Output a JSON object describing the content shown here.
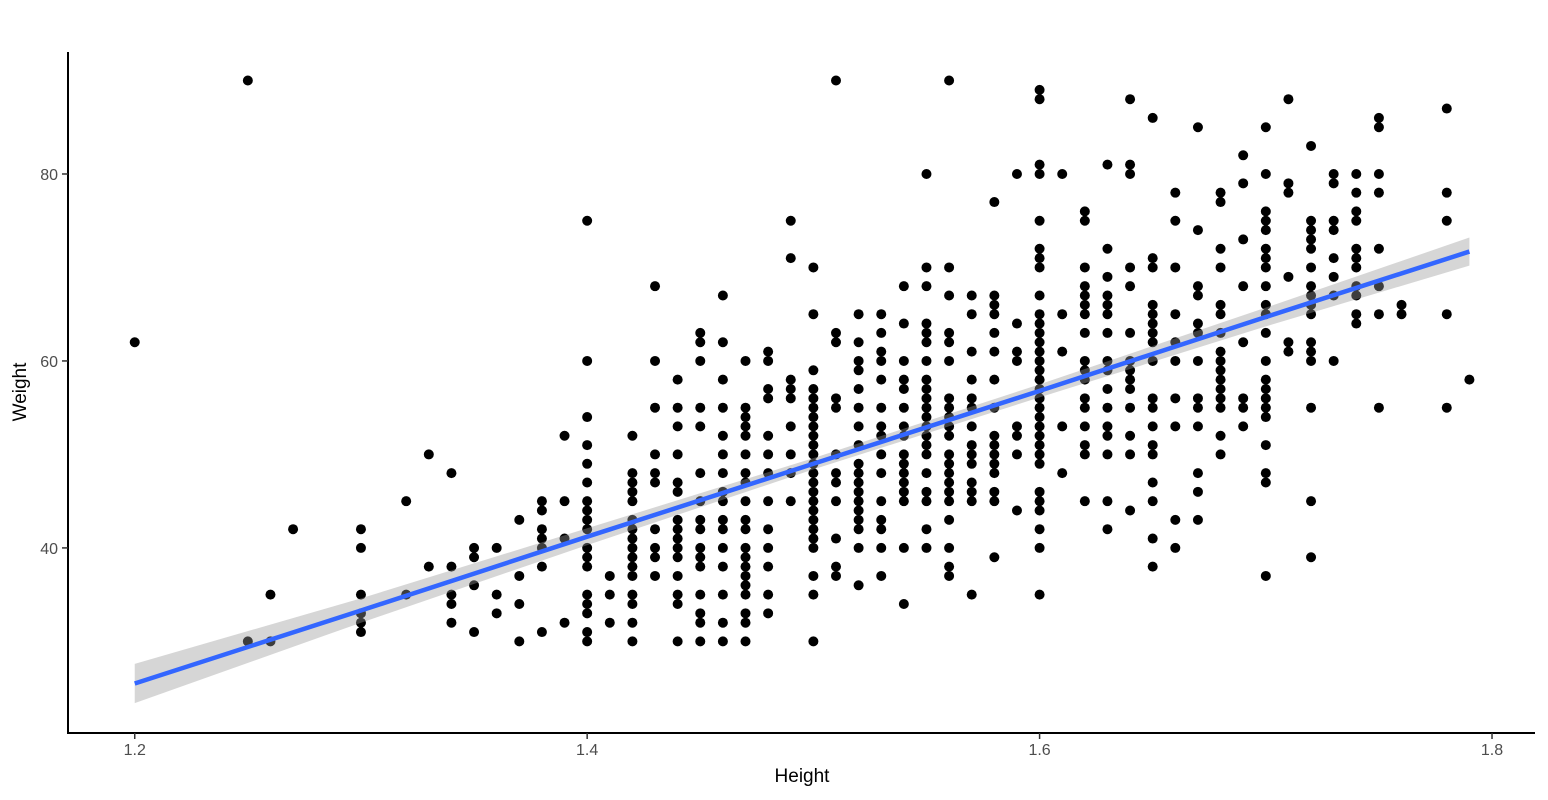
{
  "chart_data": {
    "type": "scatter",
    "x_label": "Height",
    "y_label": "Weight",
    "xlim": [
      1.1705,
      1.819
    ],
    "ylim": [
      20.2,
      93.05
    ],
    "xticks": [
      1.2,
      1.4,
      1.6,
      1.8
    ],
    "yticks": [
      40,
      60,
      80
    ],
    "color": "#000000",
    "points": [
      {
        "x": 1.2,
        "values": [
          62
        ]
      },
      {
        "x": 1.25,
        "values": [
          90,
          30
        ]
      },
      {
        "x": 1.26,
        "values": [
          35,
          30
        ]
      },
      {
        "x": 1.27,
        "values": [
          42
        ]
      },
      {
        "x": 1.3,
        "values": [
          42,
          40,
          35,
          33,
          32,
          31
        ]
      },
      {
        "x": 1.32,
        "values": [
          45,
          35
        ]
      },
      {
        "x": 1.33,
        "values": [
          50,
          38
        ]
      },
      {
        "x": 1.34,
        "values": [
          48,
          38,
          35,
          34,
          32
        ]
      },
      {
        "x": 1.35,
        "values": [
          40,
          39,
          36,
          31
        ]
      },
      {
        "x": 1.36,
        "values": [
          40,
          35,
          33
        ]
      },
      {
        "x": 1.37,
        "values": [
          43,
          37,
          34,
          30
        ]
      },
      {
        "x": 1.38,
        "values": [
          45,
          44,
          42,
          41,
          40,
          38,
          31
        ]
      },
      {
        "x": 1.39,
        "values": [
          52,
          45,
          41,
          32
        ]
      },
      {
        "x": 1.4,
        "values": [
          75,
          60,
          54,
          51,
          49,
          47,
          45,
          44,
          43,
          42,
          40,
          39,
          38,
          35,
          34,
          33,
          31,
          30
        ]
      },
      {
        "x": 1.41,
        "values": [
          37,
          35,
          32
        ]
      },
      {
        "x": 1.42,
        "values": [
          52,
          48,
          47,
          46,
          45,
          43,
          42,
          41,
          40,
          39,
          38,
          37,
          35,
          34,
          32,
          30
        ]
      },
      {
        "x": 1.43,
        "values": [
          68,
          60,
          55,
          50,
          48,
          47,
          42,
          40,
          39,
          37
        ]
      },
      {
        "x": 1.44,
        "values": [
          58,
          55,
          53,
          50,
          47,
          46,
          43,
          42,
          41,
          40,
          39,
          37,
          35,
          34,
          30
        ]
      },
      {
        "x": 1.45,
        "values": [
          63,
          62,
          60,
          55,
          53,
          48,
          45,
          43,
          42,
          40,
          39,
          38,
          35,
          33,
          32,
          30
        ]
      },
      {
        "x": 1.46,
        "values": [
          67,
          62,
          58,
          55,
          52,
          50,
          48,
          46,
          45,
          43,
          42,
          40,
          38,
          35,
          32,
          30
        ]
      },
      {
        "x": 1.47,
        "values": [
          60,
          55,
          54,
          53,
          52,
          50,
          48,
          47,
          45,
          43,
          42,
          40,
          39,
          38,
          37,
          36,
          35,
          33,
          32,
          30
        ]
      },
      {
        "x": 1.48,
        "values": [
          61,
          60,
          57,
          56,
          52,
          50,
          48,
          45,
          42,
          40,
          38,
          35,
          33
        ]
      },
      {
        "x": 1.49,
        "values": [
          75,
          71,
          58,
          57,
          56,
          53,
          50,
          48,
          45
        ]
      },
      {
        "x": 1.5,
        "values": [
          70,
          65,
          59,
          57,
          56,
          55,
          54,
          53,
          52,
          51,
          50,
          49,
          48,
          47,
          46,
          45,
          44,
          43,
          42,
          41,
          40,
          37,
          35,
          30
        ]
      },
      {
        "x": 1.51,
        "values": [
          90,
          63,
          62,
          56,
          55,
          50,
          48,
          47,
          45,
          41,
          38,
          37
        ]
      },
      {
        "x": 1.52,
        "values": [
          65,
          62,
          60,
          59,
          57,
          55,
          53,
          51,
          49,
          48,
          47,
          46,
          45,
          44,
          43,
          42,
          40,
          36
        ]
      },
      {
        "x": 1.53,
        "values": [
          65,
          63,
          61,
          60,
          58,
          55,
          53,
          52,
          50,
          48,
          45,
          43,
          42,
          40,
          37
        ]
      },
      {
        "x": 1.54,
        "values": [
          68,
          64,
          60,
          58,
          57,
          55,
          53,
          52,
          50,
          49,
          48,
          47,
          46,
          45,
          40,
          34
        ]
      },
      {
        "x": 1.55,
        "values": [
          80,
          70,
          68,
          64,
          63,
          62,
          60,
          58,
          57,
          56,
          55,
          54,
          53,
          52,
          51,
          50,
          48,
          46,
          45,
          42,
          40
        ]
      },
      {
        "x": 1.56,
        "values": [
          90,
          70,
          67,
          63,
          62,
          60,
          56,
          55,
          54,
          53,
          52,
          50,
          49,
          48,
          47,
          46,
          45,
          43,
          40,
          38,
          37
        ]
      },
      {
        "x": 1.57,
        "values": [
          67,
          65,
          61,
          58,
          56,
          55,
          53,
          51,
          50,
          49,
          47,
          46,
          45,
          35
        ]
      },
      {
        "x": 1.58,
        "values": [
          77,
          67,
          66,
          65,
          63,
          61,
          58,
          55,
          52,
          51,
          50,
          49,
          48,
          46,
          45,
          39
        ]
      },
      {
        "x": 1.59,
        "values": [
          80,
          64,
          61,
          60,
          53,
          52,
          50,
          44
        ]
      },
      {
        "x": 1.6,
        "values": [
          89,
          88,
          81,
          80,
          75,
          72,
          71,
          70,
          67,
          65,
          64,
          63,
          62,
          61,
          60,
          59,
          58,
          57,
          56,
          55,
          54,
          53,
          52,
          51,
          50,
          49,
          46,
          45,
          44,
          42,
          40,
          35
        ]
      },
      {
        "x": 1.61,
        "values": [
          80,
          65,
          61,
          53,
          48
        ]
      },
      {
        "x": 1.62,
        "values": [
          76,
          75,
          70,
          68,
          67,
          66,
          65,
          63,
          60,
          59,
          58,
          56,
          55,
          53,
          51,
          50,
          45
        ]
      },
      {
        "x": 1.63,
        "values": [
          81,
          72,
          69,
          67,
          66,
          65,
          63,
          60,
          59,
          57,
          55,
          53,
          52,
          50,
          45,
          42
        ]
      },
      {
        "x": 1.64,
        "values": [
          88,
          81,
          80,
          70,
          68,
          63,
          60,
          59,
          58,
          57,
          55,
          52,
          50,
          44
        ]
      },
      {
        "x": 1.65,
        "values": [
          86,
          71,
          70,
          66,
          65,
          64,
          63,
          62,
          60,
          56,
          55,
          53,
          51,
          50,
          47,
          45,
          41,
          38
        ]
      },
      {
        "x": 1.66,
        "values": [
          78,
          75,
          70,
          65,
          62,
          60,
          56,
          53,
          43,
          40
        ]
      },
      {
        "x": 1.67,
        "values": [
          85,
          74,
          68,
          67,
          64,
          63,
          60,
          56,
          55,
          53,
          48,
          46,
          43
        ]
      },
      {
        "x": 1.68,
        "values": [
          78,
          77,
          72,
          70,
          66,
          65,
          63,
          61,
          60,
          59,
          58,
          57,
          56,
          55,
          52,
          50
        ]
      },
      {
        "x": 1.69,
        "values": [
          82,
          79,
          73,
          68,
          62,
          56,
          55,
          53
        ]
      },
      {
        "x": 1.7,
        "values": [
          85,
          80,
          76,
          75,
          74,
          72,
          71,
          70,
          68,
          66,
          65,
          63,
          60,
          58,
          57,
          56,
          55,
          54,
          51,
          48,
          47,
          37
        ]
      },
      {
        "x": 1.71,
        "values": [
          88,
          79,
          78,
          69,
          62,
          61
        ]
      },
      {
        "x": 1.72,
        "values": [
          83,
          75,
          74,
          73,
          72,
          70,
          68,
          67,
          66,
          65,
          62,
          61,
          60,
          55,
          45,
          39
        ]
      },
      {
        "x": 1.73,
        "values": [
          80,
          79,
          75,
          74,
          71,
          69,
          67,
          60
        ]
      },
      {
        "x": 1.74,
        "values": [
          80,
          78,
          76,
          75,
          72,
          71,
          70,
          68,
          67,
          65,
          64
        ]
      },
      {
        "x": 1.75,
        "values": [
          86,
          85,
          80,
          78,
          72,
          68,
          65,
          55
        ]
      },
      {
        "x": 1.76,
        "values": [
          66,
          65
        ]
      },
      {
        "x": 1.78,
        "values": [
          87,
          78,
          75,
          65,
          55
        ]
      },
      {
        "x": 1.79,
        "values": [
          58
        ]
      }
    ],
    "fit": {
      "color": "#3366ff",
      "band_color": "#999999",
      "x": [
        1.2,
        1.3,
        1.4,
        1.5,
        1.6,
        1.7,
        1.79
      ],
      "values": [
        25.5,
        33.3,
        41.2,
        49.0,
        56.8,
        64.7,
        71.7
      ],
      "lower": [
        23.4,
        32.0,
        40.3,
        48.4,
        56.1,
        63.7,
        70.2
      ],
      "upper": [
        27.6,
        34.6,
        42.1,
        49.6,
        57.5,
        65.7,
        73.2
      ]
    }
  }
}
